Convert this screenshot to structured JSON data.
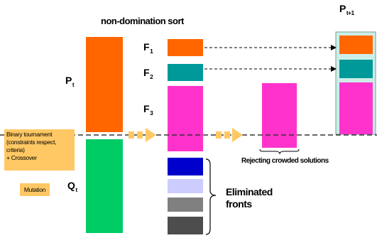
{
  "title": "non-domination sort",
  "labels": {
    "p_t": {
      "main": "P",
      "sub": "t"
    },
    "q_t": {
      "main": "Q",
      "sub": "t"
    },
    "f1": {
      "main": "F",
      "sub": "1"
    },
    "f2": {
      "main": "F",
      "sub": "2"
    },
    "f3": {
      "main": "F",
      "sub": "3"
    },
    "p_next": {
      "main": "P",
      "sub": "t+1"
    }
  },
  "binary_box": [
    "Binary tournament",
    "(constraints respect,",
    "criteria)",
    "+ Crossover"
  ],
  "mutation": "Mutation",
  "rejecting": "Rejecting crowded solutions",
  "eliminated": [
    "Eliminated",
    "fronts"
  ],
  "colors": {
    "orange": "#ff6600",
    "green": "#00cc66",
    "teal": "#009999",
    "magenta": "#ff33cc",
    "dark_blue": "#0000cc",
    "lavender": "#ccccff",
    "gray": "#808080",
    "dark_gray": "#4d4d4d",
    "next_panel_bg": "#cceee8",
    "tag_bg": "#ffc864",
    "arrow": "#ffc864"
  },
  "icons": [
    "dashed-arrow-icon",
    "block-arrow-icon",
    "curly-brace-icon"
  ]
}
